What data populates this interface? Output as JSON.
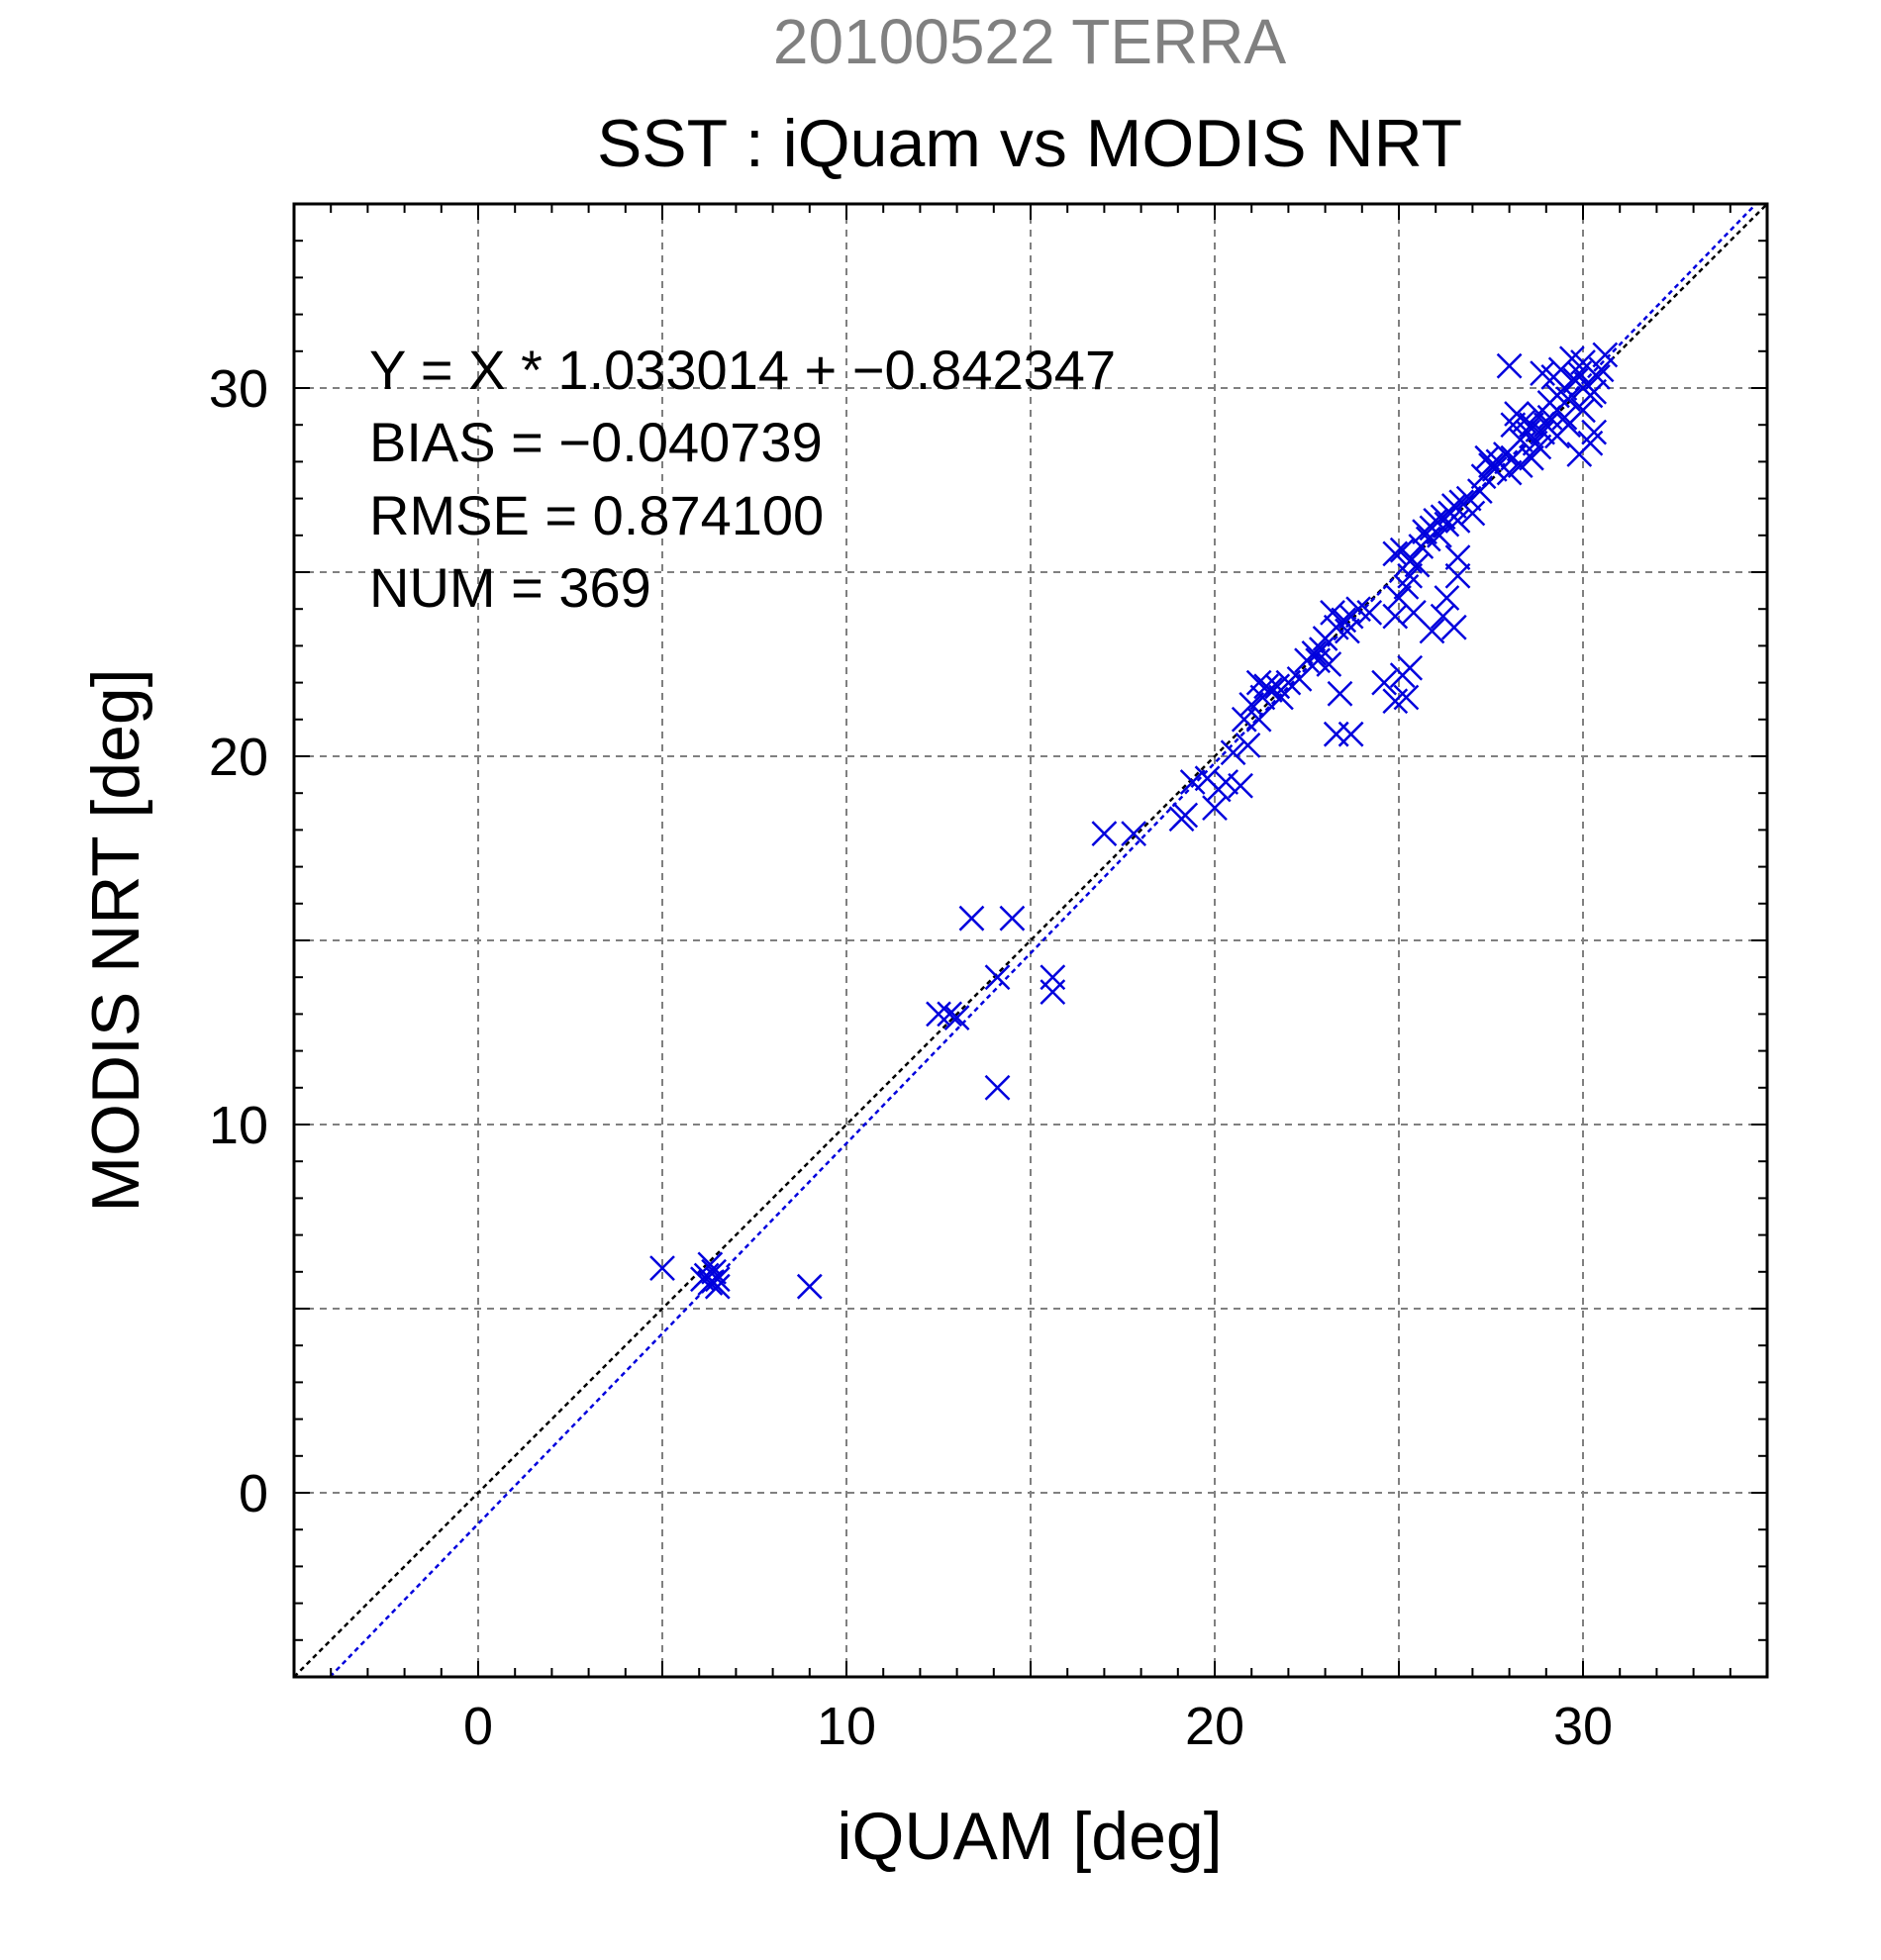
{
  "chart_data": {
    "type": "scatter",
    "title": "20100522 TERRA",
    "subtitle": "SST : iQuam vs MODIS NRT",
    "xlabel": "iQUAM [deg]",
    "ylabel": "MODIS NRT [deg]",
    "xlim": [
      -5,
      35
    ],
    "ylim": [
      -5,
      35
    ],
    "xticks": [
      0,
      10,
      20,
      30
    ],
    "yticks": [
      0,
      10,
      20,
      30
    ],
    "grid": true,
    "colors": {
      "title": "#808080",
      "text": "#000000",
      "points": "#0000dd",
      "fit_line": "#0000dd",
      "identity_line": "#000000",
      "grid": "#808080"
    },
    "annotations": [
      "Y = X * 1.033014 + −0.842347",
      "BIAS = −0.040739",
      "RMSE = 0.874100",
      "NUM = 369"
    ],
    "fit": {
      "slope": 1.033014,
      "intercept": -0.842347
    },
    "identity_line": {
      "slope": 1,
      "intercept": 0
    },
    "series": [
      {
        "marker": "x",
        "points": [
          [
            5.0,
            6.1
          ],
          [
            6.1,
            5.8
          ],
          [
            6.2,
            5.9
          ],
          [
            6.3,
            5.7
          ],
          [
            6.4,
            6.0
          ],
          [
            6.5,
            5.8
          ],
          [
            6.3,
            6.2
          ],
          [
            6.5,
            5.6
          ],
          [
            9.0,
            5.6
          ],
          [
            12.5,
            13.0
          ],
          [
            12.8,
            13.0
          ],
          [
            13.0,
            12.9
          ],
          [
            13.4,
            15.6
          ],
          [
            14.1,
            14.0
          ],
          [
            14.1,
            11.0
          ],
          [
            14.5,
            15.6
          ],
          [
            15.6,
            14.0
          ],
          [
            15.6,
            13.6
          ],
          [
            17.0,
            17.9
          ],
          [
            17.8,
            17.9
          ],
          [
            19.1,
            18.3
          ],
          [
            19.2,
            18.4
          ],
          [
            19.4,
            19.3
          ],
          [
            19.8,
            19.4
          ],
          [
            20.0,
            18.6
          ],
          [
            20.1,
            19.1
          ],
          [
            20.3,
            19.3
          ],
          [
            20.5,
            20.1
          ],
          [
            20.7,
            19.2
          ],
          [
            20.9,
            20.3
          ],
          [
            20.8,
            21.0
          ],
          [
            21.0,
            21.4
          ],
          [
            21.2,
            21.0
          ],
          [
            21.3,
            21.6
          ],
          [
            21.5,
            21.8
          ],
          [
            21.7,
            21.9
          ],
          [
            21.2,
            22.0
          ],
          [
            21.4,
            21.9
          ],
          [
            21.8,
            21.6
          ],
          [
            22.0,
            22.0
          ],
          [
            22.3,
            22.1
          ],
          [
            22.5,
            22.6
          ],
          [
            22.7,
            22.8
          ],
          [
            22.9,
            22.9
          ],
          [
            23.1,
            22.5
          ],
          [
            22.8,
            22.6
          ],
          [
            23.0,
            23.2
          ],
          [
            23.3,
            23.5
          ],
          [
            23.5,
            23.7
          ],
          [
            23.2,
            23.9
          ],
          [
            23.7,
            23.8
          ],
          [
            23.9,
            24.0
          ],
          [
            23.6,
            23.4
          ],
          [
            24.2,
            23.9
          ],
          [
            23.4,
            21.7
          ],
          [
            23.3,
            20.6
          ],
          [
            23.7,
            20.6
          ],
          [
            24.6,
            22.0
          ],
          [
            24.9,
            21.5
          ],
          [
            25.2,
            21.6
          ],
          [
            25.1,
            22.2
          ],
          [
            25.3,
            22.4
          ],
          [
            24.9,
            23.8
          ],
          [
            25.4,
            23.9
          ],
          [
            25.0,
            24.3
          ],
          [
            25.2,
            24.6
          ],
          [
            25.3,
            24.9
          ],
          [
            25.5,
            25.2
          ],
          [
            24.9,
            25.5
          ],
          [
            25.1,
            25.6
          ],
          [
            25.3,
            25.3
          ],
          [
            25.6,
            25.7
          ],
          [
            25.8,
            25.9
          ],
          [
            25.7,
            26.1
          ],
          [
            25.9,
            26.2
          ],
          [
            26.0,
            26.4
          ],
          [
            26.2,
            26.5
          ],
          [
            26.1,
            26.0
          ],
          [
            26.4,
            26.6
          ],
          [
            26.3,
            26.3
          ],
          [
            26.5,
            26.8
          ],
          [
            26.7,
            26.9
          ],
          [
            26.6,
            26.4
          ],
          [
            26.9,
            27.0
          ],
          [
            27.0,
            26.6
          ],
          [
            27.2,
            27.2
          ],
          [
            26.5,
            23.5
          ],
          [
            26.3,
            24.3
          ],
          [
            26.6,
            24.9
          ],
          [
            26.2,
            23.8
          ],
          [
            25.9,
            23.4
          ],
          [
            26.6,
            25.4
          ],
          [
            27.3,
            27.6
          ],
          [
            27.5,
            27.9
          ],
          [
            27.4,
            28.1
          ],
          [
            27.7,
            28.0
          ],
          [
            27.9,
            28.2
          ],
          [
            27.6,
            27.8
          ],
          [
            28.1,
            28.1
          ],
          [
            28.0,
            27.7
          ],
          [
            28.3,
            28.6
          ],
          [
            28.1,
            29.0
          ],
          [
            28.2,
            29.3
          ],
          [
            28.5,
            28.8
          ],
          [
            28.4,
            29.1
          ],
          [
            28.7,
            28.5
          ],
          [
            28.6,
            29.0
          ],
          [
            28.9,
            28.8
          ],
          [
            28.8,
            29.3
          ],
          [
            29.0,
            29.0
          ],
          [
            28.0,
            30.6
          ],
          [
            28.9,
            30.4
          ],
          [
            29.1,
            29.6
          ],
          [
            29.3,
            29.8
          ],
          [
            29.2,
            30.3
          ],
          [
            29.5,
            30.0
          ],
          [
            29.4,
            30.5
          ],
          [
            29.6,
            29.7
          ],
          [
            29.8,
            30.2
          ],
          [
            29.7,
            30.8
          ],
          [
            29.9,
            30.4
          ],
          [
            30.0,
            30.7
          ],
          [
            30.1,
            30.1
          ],
          [
            30.2,
            29.8
          ],
          [
            30.0,
            29.4
          ],
          [
            29.5,
            29.2
          ],
          [
            29.3,
            28.7
          ],
          [
            29.9,
            28.2
          ],
          [
            30.2,
            28.5
          ],
          [
            30.3,
            28.8
          ],
          [
            30.3,
            29.9
          ],
          [
            30.5,
            30.5
          ],
          [
            30.6,
            30.9
          ],
          [
            30.4,
            30.3
          ],
          [
            29.6,
            29.0
          ],
          [
            29.1,
            29.2
          ],
          [
            28.8,
            28.4
          ],
          [
            28.3,
            27.9
          ],
          [
            28.6,
            28.1
          ]
        ]
      }
    ]
  }
}
